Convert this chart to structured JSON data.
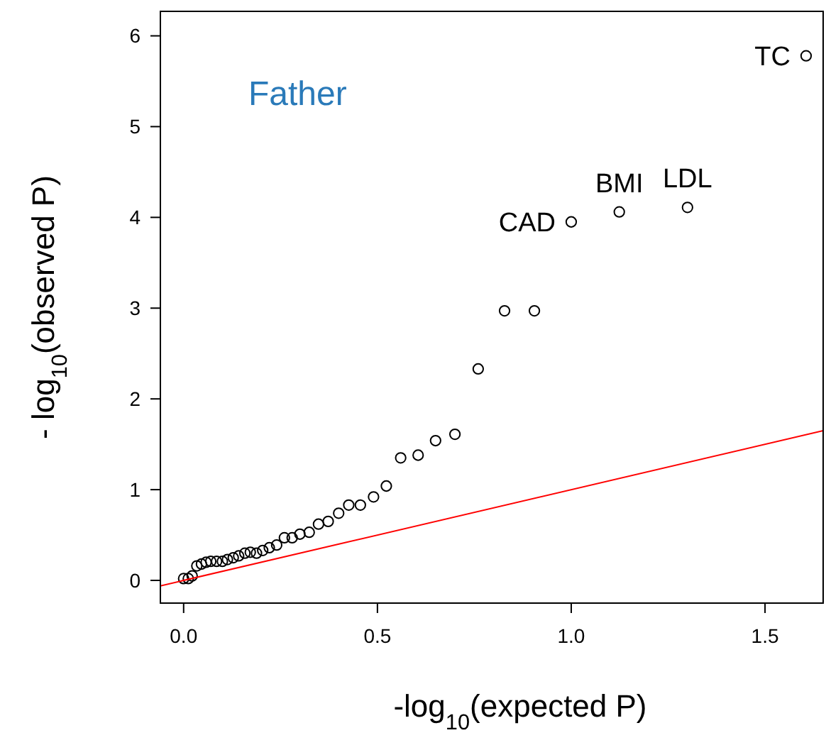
{
  "chart_data": {
    "type": "scatter",
    "xlabel": "-log$_{10}$(expected P)",
    "ylabel": "- log$_{10}$(observed P)",
    "xlim": [
      -0.06,
      1.65
    ],
    "ylim": [
      -0.25,
      6.27
    ],
    "xticks": [
      {
        "value": 0,
        "label": "0.0"
      },
      0.5,
      {
        "value": 1,
        "label": "1.0"
      },
      1.5
    ],
    "yticks": [
      0,
      1,
      2,
      3,
      4,
      5,
      6
    ],
    "grid": false,
    "marker": "circle",
    "series": [
      {
        "color": "#000000",
        "x": [
          0.0,
          0.012,
          0.022,
          0.034,
          0.046,
          0.058,
          0.07,
          0.085,
          0.1,
          0.113,
          0.128,
          0.142,
          0.158,
          0.172,
          0.188,
          0.204,
          0.221,
          0.24,
          0.26,
          0.28,
          0.3,
          0.324,
          0.348,
          0.373,
          0.4,
          0.426,
          0.456,
          0.49,
          0.523,
          0.56,
          0.605,
          0.65,
          0.7,
          0.76,
          0.828,
          0.905,
          1.0,
          1.124,
          1.3,
          1.606
        ],
        "values": [
          0.02,
          0.02,
          0.05,
          0.16,
          0.18,
          0.2,
          0.21,
          0.21,
          0.21,
          0.23,
          0.25,
          0.27,
          0.3,
          0.31,
          0.3,
          0.33,
          0.36,
          0.39,
          0.47,
          0.47,
          0.51,
          0.53,
          0.62,
          0.65,
          0.74,
          0.83,
          0.83,
          0.92,
          1.04,
          1.35,
          1.38,
          1.54,
          1.61,
          2.33,
          2.97,
          2.97,
          3.95,
          4.06,
          4.11,
          5.78
        ]
      },
      {
        "type": "line",
        "color": "#ff0000",
        "x": [
          -0.06,
          1.65
        ],
        "values": [
          -0.06,
          1.65
        ],
        "marker": "none"
      }
    ],
    "annotations": [
      "Father",
      {
        "text": "CAD",
        "x": 1.0,
        "y": 3.95
      },
      {
        "text": "BMI",
        "x": 1.124,
        "y": 4.06
      },
      {
        "text": "LDL",
        "x": 1.3,
        "y": 4.11
      },
      {
        "text": "TC",
        "x": 1.606,
        "y": 5.78
      }
    ]
  }
}
